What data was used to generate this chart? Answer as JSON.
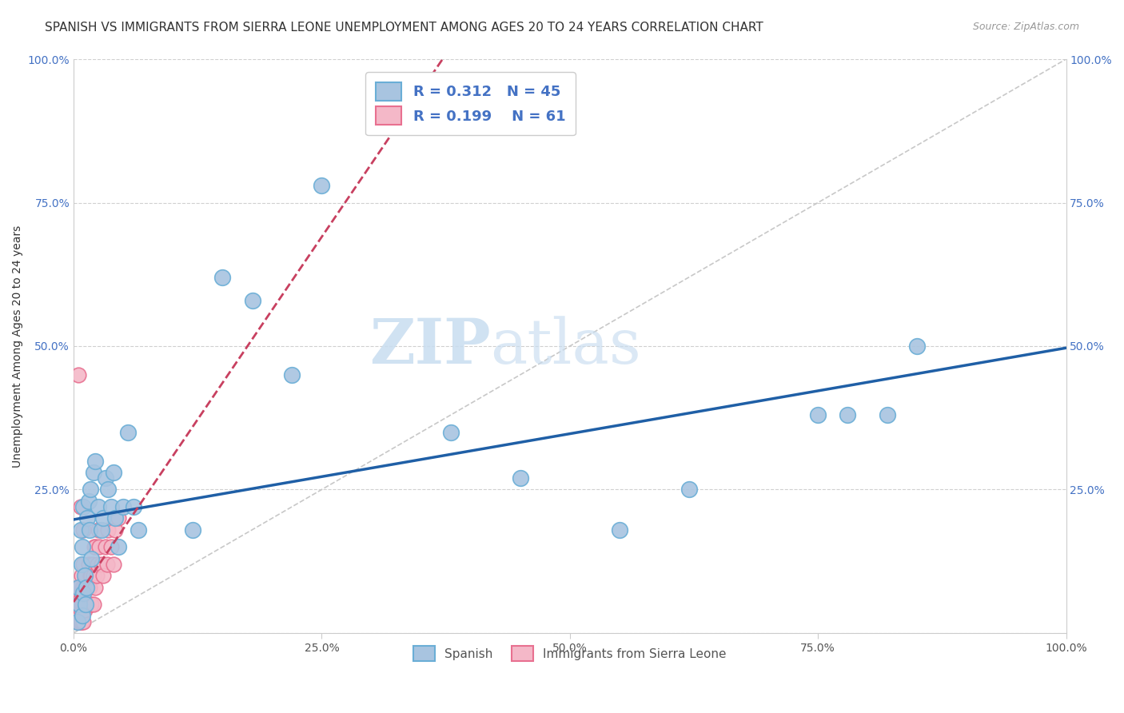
{
  "title": "SPANISH VS IMMIGRANTS FROM SIERRA LEONE UNEMPLOYMENT AMONG AGES 20 TO 24 YEARS CORRELATION CHART",
  "source": "Source: ZipAtlas.com",
  "xlabel": "",
  "ylabel": "Unemployment Among Ages 20 to 24 years",
  "xlim": [
    0,
    1
  ],
  "ylim": [
    0,
    1
  ],
  "xticks": [
    0,
    0.25,
    0.5,
    0.75,
    1.0
  ],
  "yticks": [
    0,
    0.25,
    0.5,
    0.75,
    1.0
  ],
  "xticklabels": [
    "0.0%",
    "25.0%",
    "50.0%",
    "75.0%",
    "100.0%"
  ],
  "yticklabels": [
    "",
    "25.0%",
    "50.0%",
    "75.0%",
    "100.0%"
  ],
  "right_yticklabels": [
    "",
    "25.0%",
    "50.0%",
    "75.0%",
    "100.0%"
  ],
  "spanish_color": "#a8c4e0",
  "spanish_edge": "#6aaed6",
  "sierra_color": "#f4b8c8",
  "sierra_edge": "#e87090",
  "regression_blue": "#1f5fa6",
  "regression_pink": "#c84060",
  "diag_color": "#c8c8c8",
  "R_spanish": 0.312,
  "N_spanish": 45,
  "R_sierra": 0.199,
  "N_sierra": 61,
  "spanish_x": [
    0.004,
    0.005,
    0.006,
    0.007,
    0.008,
    0.009,
    0.009,
    0.01,
    0.01,
    0.011,
    0.012,
    0.013,
    0.014,
    0.015,
    0.016,
    0.017,
    0.018,
    0.02,
    0.022,
    0.025,
    0.028,
    0.03,
    0.032,
    0.035,
    0.038,
    0.04,
    0.042,
    0.045,
    0.05,
    0.055,
    0.06,
    0.065,
    0.12,
    0.15,
    0.18,
    0.22,
    0.25,
    0.38,
    0.45,
    0.55,
    0.62,
    0.75,
    0.78,
    0.82,
    0.85
  ],
  "spanish_y": [
    0.02,
    0.08,
    0.05,
    0.18,
    0.12,
    0.15,
    0.03,
    0.07,
    0.22,
    0.1,
    0.05,
    0.08,
    0.2,
    0.23,
    0.18,
    0.25,
    0.13,
    0.28,
    0.3,
    0.22,
    0.18,
    0.2,
    0.27,
    0.25,
    0.22,
    0.28,
    0.2,
    0.15,
    0.22,
    0.35,
    0.22,
    0.18,
    0.18,
    0.62,
    0.58,
    0.45,
    0.78,
    0.35,
    0.27,
    0.18,
    0.25,
    0.38,
    0.38,
    0.38,
    0.5
  ],
  "sierra_x": [
    0.002,
    0.003,
    0.004,
    0.004,
    0.005,
    0.005,
    0.005,
    0.006,
    0.006,
    0.006,
    0.007,
    0.007,
    0.007,
    0.008,
    0.008,
    0.008,
    0.008,
    0.009,
    0.009,
    0.01,
    0.01,
    0.01,
    0.01,
    0.011,
    0.011,
    0.012,
    0.012,
    0.013,
    0.013,
    0.014,
    0.014,
    0.015,
    0.015,
    0.015,
    0.016,
    0.016,
    0.017,
    0.018,
    0.018,
    0.019,
    0.02,
    0.02,
    0.021,
    0.022,
    0.022,
    0.023,
    0.024,
    0.025,
    0.026,
    0.028,
    0.03,
    0.032,
    0.034,
    0.035,
    0.038,
    0.04,
    0.042,
    0.045,
    0.005,
    0.007,
    0.01
  ],
  "sierra_y": [
    0.05,
    0.03,
    0.02,
    0.08,
    0.02,
    0.04,
    0.06,
    0.02,
    0.05,
    0.08,
    0.02,
    0.04,
    0.06,
    0.02,
    0.05,
    0.07,
    0.1,
    0.04,
    0.08,
    0.02,
    0.05,
    0.08,
    0.12,
    0.04,
    0.08,
    0.05,
    0.1,
    0.05,
    0.08,
    0.05,
    0.08,
    0.05,
    0.08,
    0.12,
    0.05,
    0.08,
    0.1,
    0.05,
    0.1,
    0.12,
    0.05,
    0.1,
    0.15,
    0.08,
    0.15,
    0.1,
    0.12,
    0.18,
    0.15,
    0.12,
    0.1,
    0.15,
    0.12,
    0.18,
    0.15,
    0.12,
    0.18,
    0.2,
    0.45,
    0.22,
    0.18
  ],
  "watermark_zip": "ZIP",
  "watermark_atlas": "atlas",
  "title_fontsize": 11,
  "label_fontsize": 10,
  "tick_fontsize": 10
}
